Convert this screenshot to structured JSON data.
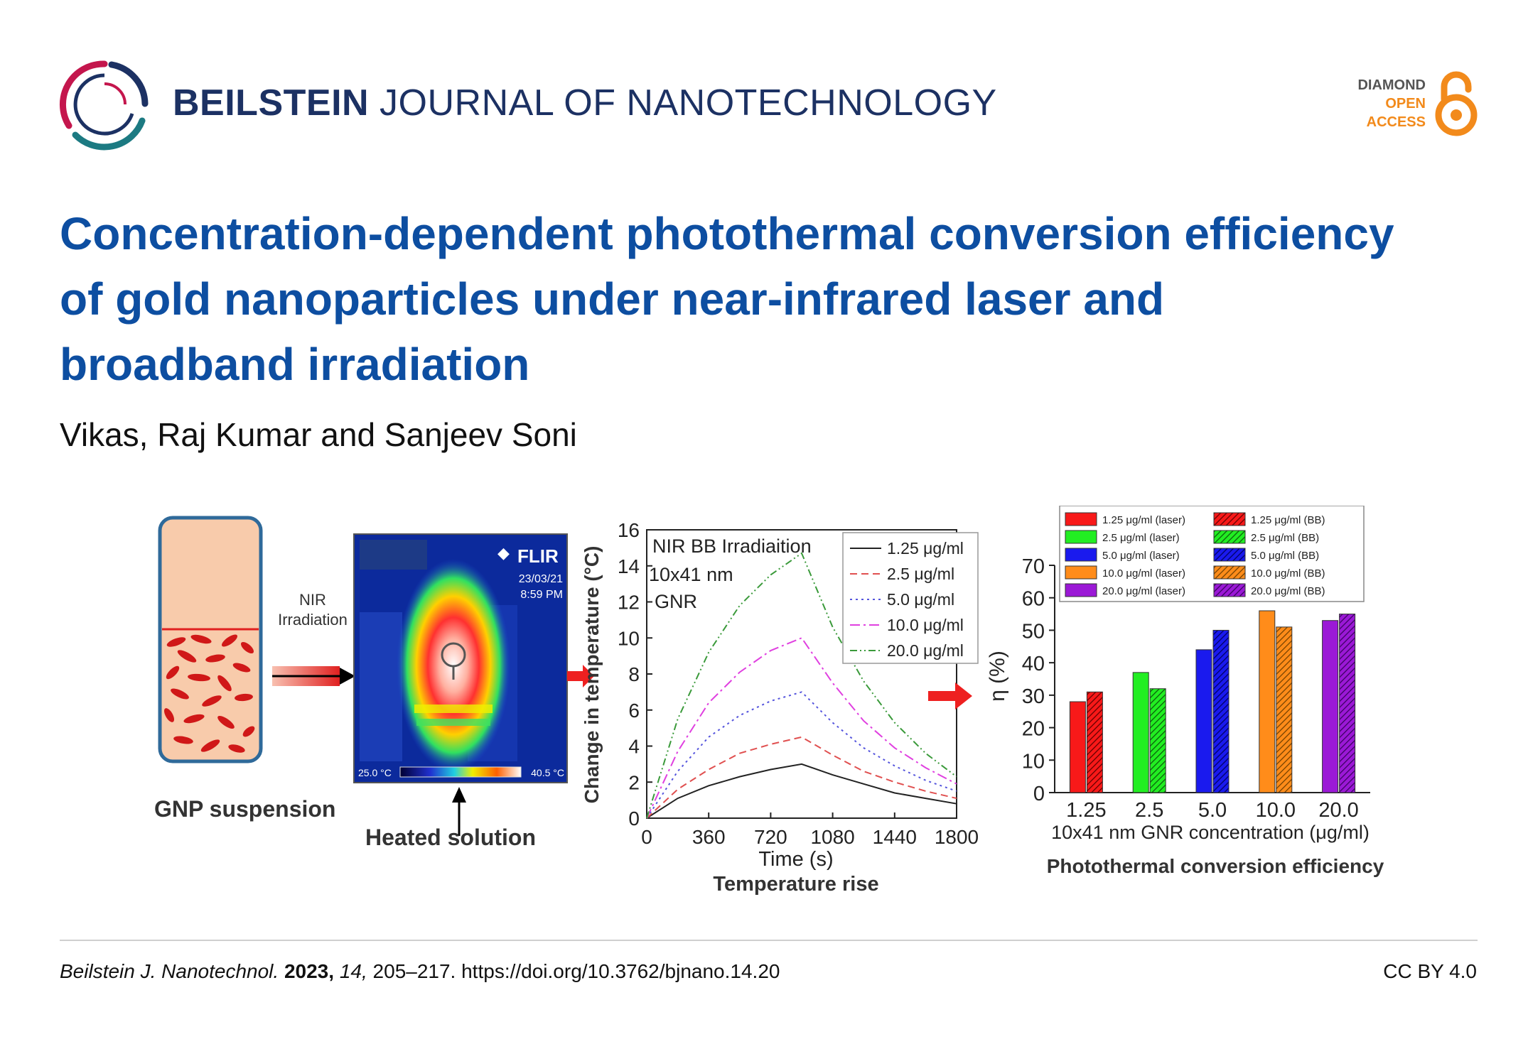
{
  "header": {
    "journal_bold": "BEILSTEIN",
    "journal_rest": "JOURNAL OF NANOTECHNOLOGY",
    "oa_line1": "DIAMOND",
    "oa_line2": "OPEN",
    "oa_line3": "ACCESS"
  },
  "paper": {
    "title_line1": "Concentration-dependent photothermal conversion efficiency",
    "title_line2": "of gold nanoparticles under near-infrared laser and",
    "title_line3": "broadband irradiation",
    "authors": "Vikas, Raj Kumar and Sanjeev Soni"
  },
  "abstract_figure": {
    "panel1": {
      "label": "GNP suspension",
      "arrow_label_1": "NIR",
      "arrow_label_2": "Irradiation"
    },
    "panel2": {
      "brand": "FLIR",
      "date": "23/03/21",
      "time": "8:59 PM",
      "scale_min": "25.0 °C",
      "scale_max": "40.5 °C",
      "label": "Heated solution"
    },
    "panel3": {
      "annotation_1": "NIR BB Irradiaition",
      "annotation_2": "10x41 nm",
      "annotation_3": "GNR",
      "caption": "Temperature rise"
    },
    "panel4": {
      "caption": "Photothermal  conversion  efficiency"
    }
  },
  "chart_data": [
    {
      "type": "line",
      "title": "NIR BB Irradiaition",
      "xlabel": "Time (s)",
      "ylabel": "Change in temperature (°C)",
      "xlim": [
        0,
        1800
      ],
      "ylim": [
        0,
        16
      ],
      "xticks": [
        "0",
        "360",
        "720",
        "1080",
        "1440",
        "1800"
      ],
      "yticks": [
        "0",
        "2",
        "4",
        "6",
        "8",
        "10",
        "12",
        "14",
        "16"
      ],
      "x": [
        0,
        180,
        360,
        540,
        720,
        900,
        1080,
        1260,
        1440,
        1620,
        1800
      ],
      "series": [
        {
          "name": "1.25 μg/ml",
          "color": "#222222",
          "dash": "",
          "values": [
            0,
            1.1,
            1.8,
            2.3,
            2.7,
            3.0,
            2.4,
            1.9,
            1.4,
            1.1,
            0.8
          ]
        },
        {
          "name": "2.5 μg/ml",
          "color": "#e05050",
          "dash": "10,6",
          "values": [
            0,
            1.6,
            2.7,
            3.6,
            4.1,
            4.5,
            3.5,
            2.6,
            2.0,
            1.5,
            1.1
          ]
        },
        {
          "name": "5.0 μg/ml",
          "color": "#5555dd",
          "dash": "3,5",
          "values": [
            0,
            2.6,
            4.5,
            5.7,
            6.5,
            7.0,
            5.3,
            3.9,
            2.9,
            2.1,
            1.5
          ]
        },
        {
          "name": "10.0 μg/ml",
          "color": "#e040e0",
          "dash": "14,5,3,5",
          "values": [
            0,
            3.7,
            6.4,
            8.1,
            9.3,
            10.0,
            7.5,
            5.4,
            3.9,
            2.8,
            1.9
          ]
        },
        {
          "name": "20.0 μg/ml",
          "color": "#3a9a3a",
          "dash": "10,4,2,4,2,4",
          "values": [
            0,
            5.5,
            9.2,
            11.8,
            13.5,
            14.7,
            10.6,
            7.6,
            5.3,
            3.6,
            2.3
          ]
        }
      ]
    },
    {
      "type": "bar",
      "xlabel": "10x41 nm GNR concentration (μg/ml)",
      "ylabel": "η (%)",
      "ylim": [
        0,
        70
      ],
      "yticks": [
        "0",
        "10",
        "20",
        "30",
        "40",
        "50",
        "60",
        "70"
      ],
      "categories": [
        "1.25",
        "2.5",
        "5.0",
        "10.0",
        "20.0"
      ],
      "colors": [
        "#f81919",
        "#22ee22",
        "#1a1aee",
        "#ff8c1a",
        "#9b19d6"
      ],
      "dark_colors": [
        "#b01010",
        "#14a814",
        "#0c0cb0",
        "#c06010",
        "#6a0aa0"
      ],
      "series": [
        {
          "name": "laser",
          "values": [
            28,
            37,
            44,
            56,
            53
          ]
        },
        {
          "name": "BB",
          "values": [
            31,
            32,
            50,
            51,
            55
          ]
        }
      ],
      "legend": [
        "1.25 μg/ml (laser)",
        "1.25 μg/ml (BB)",
        "2.5 μg/ml (laser)",
        "2.5 μg/ml (BB)",
        "5.0 μg/ml (laser)",
        "5.0 μg/ml (BB)",
        "10.0 μg/ml (laser)",
        "10.0 μg/ml (BB)",
        "20.0 μg/ml (laser)",
        "20.0 μg/ml (BB)"
      ]
    }
  ],
  "footer": {
    "journal": "Beilstein J. Nanotechnol.",
    "year": "2023,",
    "volume": "14,",
    "pages_doi": "205–217. https://doi.org/10.3762/bjnano.14.20",
    "license": "CC BY 4.0"
  }
}
